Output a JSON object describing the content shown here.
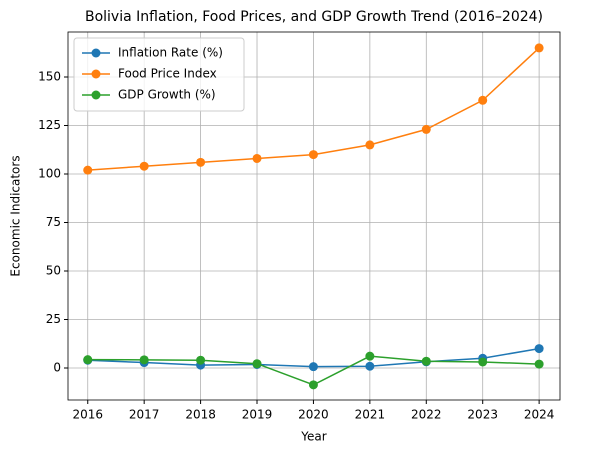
{
  "chart_data": {
    "type": "line",
    "title": "Bolivia Inflation, Food Prices, and GDP Growth Trend (2016–2024)",
    "xlabel": "Year",
    "ylabel": "Economic Indicators",
    "x": [
      2016,
      2017,
      2018,
      2019,
      2020,
      2021,
      2022,
      2023,
      2024
    ],
    "series": [
      {
        "name": "Inflation Rate (%)",
        "color": "#1f77b4",
        "values": [
          4.0,
          2.8,
          1.5,
          1.8,
          0.7,
          0.9,
          3.2,
          5.0,
          10.0
        ]
      },
      {
        "name": "Food Price Index",
        "color": "#ff7f0e",
        "values": [
          102,
          104,
          106,
          108,
          110,
          115,
          123,
          138,
          165
        ]
      },
      {
        "name": "GDP Growth (%)",
        "color": "#2ca02c",
        "values": [
          4.3,
          4.2,
          4.0,
          2.2,
          -8.7,
          6.1,
          3.5,
          3.1,
          2.0
        ]
      }
    ],
    "xlim": [
      2015.65,
      2024.37
    ],
    "xticks": [
      2016,
      2017,
      2018,
      2019,
      2020,
      2021,
      2022,
      2023,
      2024
    ],
    "ylim": [
      -16.5,
      173.2
    ],
    "yticks": [
      0,
      25,
      50,
      75,
      100,
      125,
      150
    ],
    "grid": true,
    "legend": "upper-left"
  }
}
